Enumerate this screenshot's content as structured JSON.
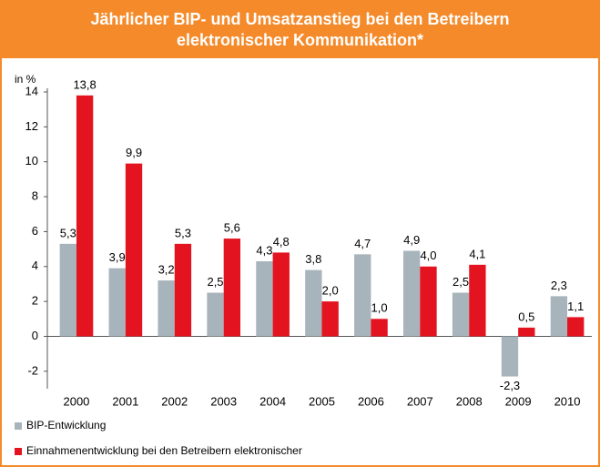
{
  "chart_data": {
    "type": "bar",
    "title": "Jährlicher BIP- und Umsatzanstieg bei den Betreibern elektronischer Kommunikation*",
    "y_label": "in %",
    "categories": [
      "2000",
      "2001",
      "2002",
      "2003",
      "2004",
      "2005",
      "2006",
      "2007",
      "2008",
      "2009",
      "2010"
    ],
    "series": [
      {
        "name": "BIP-Entwicklung",
        "color": "#a8b4bc",
        "values": [
          5.3,
          3.9,
          3.2,
          2.5,
          4.3,
          3.8,
          4.7,
          4.9,
          2.5,
          -2.3,
          2.3
        ],
        "value_labels": [
          "5,3",
          "3,9",
          "3,2",
          "2,5",
          "4,3",
          "3,8",
          "4,7",
          "4,9",
          "2,5",
          "-2,3",
          "2,3"
        ]
      },
      {
        "name": "Einnahmenentwicklung bei den Betreibern elektronischer",
        "color": "#e3141f",
        "values": [
          13.8,
          9.9,
          5.3,
          5.6,
          4.8,
          2.0,
          1.0,
          4.0,
          4.1,
          0.5,
          1.1
        ],
        "value_labels": [
          "13,8",
          "9,9",
          "5,3",
          "5,6",
          "4,8",
          "2,0",
          "1,0",
          "4,0",
          "4,1",
          "0,5",
          "1,1"
        ]
      }
    ],
    "ylim": [
      -3,
      14
    ],
    "yticks": [
      -2,
      0,
      2,
      4,
      6,
      8,
      10,
      12,
      14
    ],
    "grid": false
  }
}
